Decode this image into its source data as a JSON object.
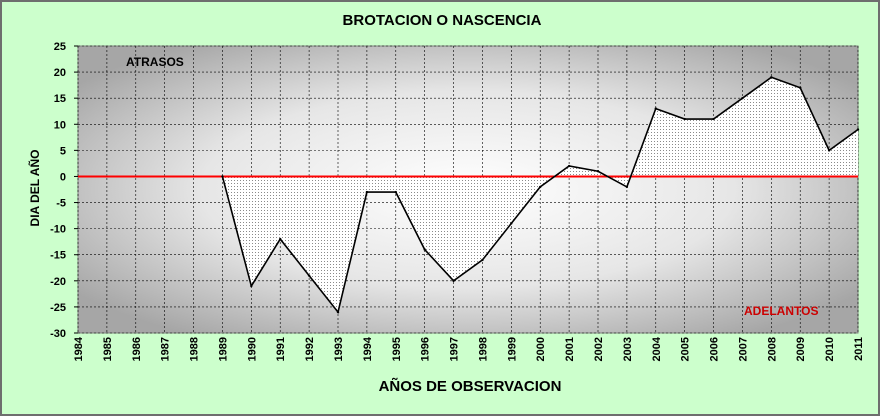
{
  "chart_data": {
    "type": "area",
    "title": "BROTACION O NASCENCIA",
    "xlabel": "AÑOS DE OBSERVACION",
    "ylabel": "DIA DEL AÑO",
    "ylim": [
      -30,
      25
    ],
    "yticks": [
      25,
      20,
      15,
      10,
      5,
      0,
      -5,
      -10,
      -15,
      -20,
      -25,
      -30
    ],
    "grid": true,
    "categories": [
      "1984",
      "1985",
      "1986",
      "1987",
      "1988",
      "1989",
      "1990",
      "1991",
      "1992",
      "1993",
      "1994",
      "1995",
      "1996",
      "1997",
      "1998",
      "1999",
      "2000",
      "2001",
      "2002",
      "2003",
      "2004",
      "2005",
      "2006",
      "2007",
      "2008",
      "2009",
      "2010",
      "2011"
    ],
    "values": [
      null,
      null,
      null,
      null,
      null,
      0,
      -21,
      -12,
      -19,
      -26,
      -3,
      -3,
      -14,
      -20,
      -16,
      -9,
      -2,
      2,
      1,
      -2,
      13,
      11,
      11,
      15,
      19,
      17,
      5,
      9
    ],
    "annotations": [
      {
        "text": "ATRASOS",
        "color": "#000000"
      },
      {
        "text": "ADELANTOS",
        "color": "#cc0000"
      }
    ],
    "reference_line": {
      "y": 0,
      "color": "#ff0000"
    }
  }
}
